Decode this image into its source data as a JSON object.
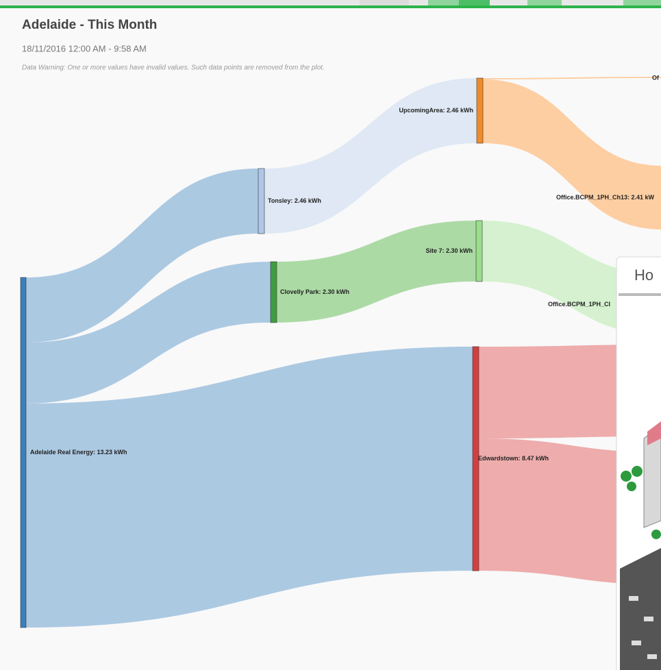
{
  "chart_data": {
    "type": "sankey",
    "title": "Adelaide - This Month",
    "subtitle": "18/11/2016 12:00 AM - 9:58 AM",
    "annotation": "Data Warning: One or more values have invalid values. Such data points are removed from the plot.",
    "nodes": [
      {
        "label": "Adelaide Real Energy: 13.23 kWh",
        "value": 13.23,
        "color": "#3a7fc0",
        "link_color": "#a8c6e0"
      },
      {
        "label": "Tonsley: 2.46 kWh",
        "value": 2.46,
        "color": "#aec7e8",
        "link_color": "#dde7f3"
      },
      {
        "label": "Clovelly Park: 2.30 kWh",
        "value": 2.3,
        "color": "#3f9d3f",
        "link_color": "#a8d8a0"
      },
      {
        "label": "UpcomingArea: 2.46 kWh",
        "value": 2.46,
        "color": "#f28a2a",
        "link_color": "#fdcb9d"
      },
      {
        "label": "Site 7: 2.30 kWh",
        "value": 2.3,
        "color": "#98df8a",
        "link_color": "#d3f0cc"
      },
      {
        "label": "Edwardstown: 8.47 kWh",
        "value": 8.47,
        "color": "#d33f3f",
        "link_color": "#eda8a8"
      },
      {
        "label": "Of",
        "value": 0.05,
        "color": "#f28a2a",
        "link_color": "#fdcb9d"
      },
      {
        "label": "Office.BCPM_1PH_Ch13: 2.41 kW",
        "value": 2.41,
        "color": "#f28a2a",
        "link_color": "#fdcb9d"
      },
      {
        "label": "Office.BCPM_1PH_Cl",
        "value": 2.3,
        "color": "#98df8a",
        "link_color": "#d3f0cc"
      },
      {
        "label": null,
        "value": 3.47,
        "color": "#d33f3f",
        "link_color": "#eda8a8"
      },
      {
        "label": null,
        "value": 5.0,
        "color": "#d33f3f",
        "link_color": "#eda8a8"
      }
    ],
    "links": [
      {
        "source": 0,
        "target": 1,
        "value": 2.46
      },
      {
        "source": 0,
        "target": 2,
        "value": 2.3
      },
      {
        "source": 0,
        "target": 5,
        "value": 8.47
      },
      {
        "source": 1,
        "target": 3,
        "value": 2.46
      },
      {
        "source": 2,
        "target": 4,
        "value": 2.3
      },
      {
        "source": 3,
        "target": 6,
        "value": 0.05
      },
      {
        "source": 3,
        "target": 7,
        "value": 2.41
      },
      {
        "source": 4,
        "target": 8,
        "value": 2.3
      },
      {
        "source": 5,
        "target": 9,
        "value": 3.47
      },
      {
        "source": 5,
        "target": 10,
        "value": 5.0
      }
    ]
  },
  "popup": {
    "title": "Ho"
  }
}
